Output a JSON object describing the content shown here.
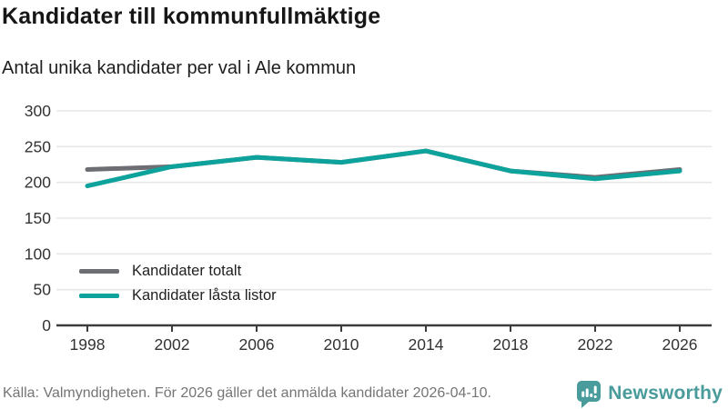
{
  "header": {
    "title": "Kandidater till kommunfullmäktige",
    "subtitle": "Antal unika kandidater per val i Ale kommun"
  },
  "chart_data": {
    "type": "line",
    "categories": [
      "1998",
      "2002",
      "2006",
      "2010",
      "2014",
      "2018",
      "2022",
      "2026"
    ],
    "series": [
      {
        "name": "Kandidater totalt",
        "color": "#6d6d74",
        "values": [
          218,
          222,
          235,
          228,
          244,
          216,
          207,
          218
        ]
      },
      {
        "name": "Kandidater låsta listor",
        "color": "#0da29b",
        "values": [
          195,
          222,
          235,
          228,
          244,
          216,
          205,
          216
        ]
      }
    ],
    "ylim": [
      0,
      300
    ],
    "ytick_step": 50,
    "yticks": [
      0,
      50,
      100,
      150,
      200,
      250,
      300
    ],
    "grid": true,
    "legend_position": "inside-bottom-left",
    "xlabel": "",
    "ylabel": ""
  },
  "colors": {
    "gridline": "#e7e7e7",
    "axis": "#3b3b3b",
    "tick_label": "#333333",
    "brand_teal": "#4a9b9b"
  },
  "footer": {
    "source": "Källa: Valmyndigheten. För 2026 gäller det anmälda kandidater 2026-04-10.",
    "brand": "Newsworthy",
    "logo_icon": "bar-chart-speech-bubble-icon"
  }
}
